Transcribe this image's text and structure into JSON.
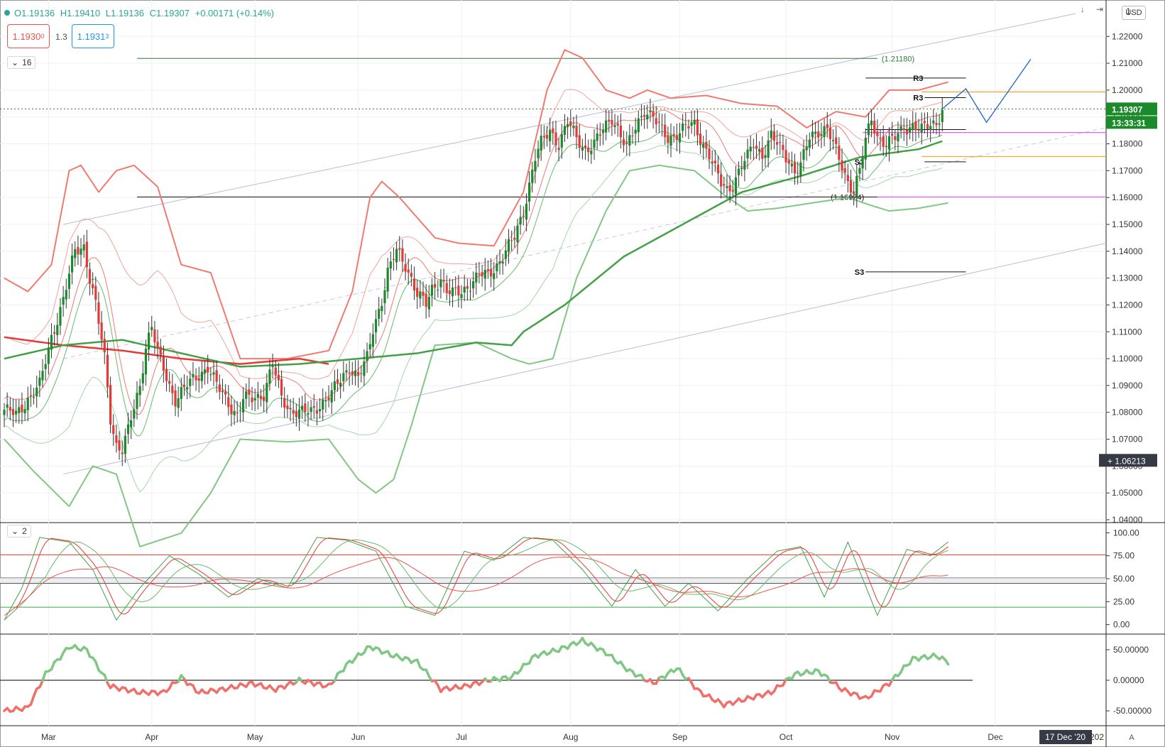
{
  "header": {
    "open": "O1.19136",
    "high": "H1.19410",
    "low": "L1.19136",
    "close": "C1.19307",
    "change": "+0.00171 (+0.14%)",
    "sell_price": "1.1930",
    "sell_sup": "0",
    "spread": "1.3",
    "buy_price": "1.1931",
    "buy_sup": "3",
    "main_indicators_count": "16",
    "osc_indicators_count": "2",
    "currency": "USD"
  },
  "chart_data": [
    {
      "type": "candlestick",
      "symbol": "EURUSD daily",
      "yticks": [
        "1.04000",
        "1.05000",
        "1.06000",
        "1.07000",
        "1.08000",
        "1.09000",
        "1.10000",
        "1.11000",
        "1.12000",
        "1.13000",
        "1.14000",
        "1.15000",
        "1.16000",
        "1.17000",
        "1.18000",
        "1.19000",
        "1.20000",
        "1.21000",
        "1.22000"
      ],
      "ylim": [
        1.0392,
        1.2288
      ],
      "xticks": [
        "Mar",
        "Apr",
        "May",
        "Jun",
        "Jul",
        "Aug",
        "Sep",
        "Oct",
        "Nov",
        "Dec"
      ],
      "last_price_label": "1.19307",
      "countdown_label": "13:33:31",
      "crosshair_price_label": "1.06213",
      "crosshair_date_label": "17 Dec '20",
      "axis_end_label": "202",
      "top_axis_label": "1.",
      "annotations": [
        {
          "text": "(1.21180)",
          "price": 1.2118
        },
        {
          "text": "(1.16024)",
          "price": 1.1602
        },
        {
          "text": "R3",
          "price": 1.2045
        },
        {
          "text": "R3",
          "price": 1.1972
        },
        {
          "text": "S3",
          "price": 1.1733
        },
        {
          "text": "S3",
          "price": 1.1323
        }
      ],
      "closes_anchor": [
        [
          0,
          1.081
        ],
        [
          4,
          1.079
        ],
        [
          8,
          1.085
        ],
        [
          12,
          1.09
        ],
        [
          16,
          1.108
        ],
        [
          20,
          1.122
        ],
        [
          24,
          1.14
        ],
        [
          27,
          1.142
        ],
        [
          29,
          1.13
        ],
        [
          31,
          1.12
        ],
        [
          34,
          1.1
        ],
        [
          36,
          1.078
        ],
        [
          38,
          1.068
        ],
        [
          40,
          1.066
        ],
        [
          42,
          1.073
        ],
        [
          46,
          1.09
        ],
        [
          48,
          1.105
        ],
        [
          50,
          1.112
        ],
        [
          52,
          1.102
        ],
        [
          56,
          1.09
        ],
        [
          58,
          1.085
        ],
        [
          62,
          1.09
        ],
        [
          66,
          1.094
        ],
        [
          69,
          1.097
        ],
        [
          72,
          1.09
        ],
        [
          75,
          1.085
        ],
        [
          79,
          1.079
        ],
        [
          81,
          1.085
        ],
        [
          84,
          1.085
        ],
        [
          88,
          1.087
        ],
        [
          91,
          1.098
        ],
        [
          94,
          1.085
        ],
        [
          97,
          1.081
        ],
        [
          101,
          1.08
        ],
        [
          104,
          1.08
        ],
        [
          108,
          1.084
        ],
        [
          111,
          1.087
        ],
        [
          114,
          1.092
        ],
        [
          117,
          1.097
        ],
        [
          120,
          1.093
        ],
        [
          123,
          1.1
        ],
        [
          125,
          1.111
        ],
        [
          128,
          1.122
        ],
        [
          130,
          1.132
        ],
        [
          133,
          1.14
        ],
        [
          136,
          1.135
        ],
        [
          138,
          1.13
        ],
        [
          140,
          1.124
        ],
        [
          143,
          1.12
        ],
        [
          145,
          1.126
        ],
        [
          148,
          1.13
        ],
        [
          150,
          1.125
        ],
        [
          152,
          1.124
        ],
        [
          155,
          1.125
        ],
        [
          158,
          1.128
        ],
        [
          161,
          1.131
        ],
        [
          164,
          1.131
        ],
        [
          167,
          1.135
        ],
        [
          170,
          1.14
        ],
        [
          173,
          1.145
        ],
        [
          176,
          1.155
        ],
        [
          178,
          1.165
        ],
        [
          180,
          1.175
        ],
        [
          182,
          1.18
        ],
        [
          185,
          1.185
        ],
        [
          188,
          1.18
        ],
        [
          191,
          1.188
        ],
        [
          194,
          1.182
        ],
        [
          197,
          1.178
        ],
        [
          200,
          1.18
        ],
        [
          203,
          1.185
        ],
        [
          206,
          1.19
        ],
        [
          208,
          1.186
        ],
        [
          211,
          1.178
        ],
        [
          214,
          1.186
        ],
        [
          217,
          1.193
        ],
        [
          220,
          1.19
        ],
        [
          222,
          1.186
        ],
        [
          225,
          1.182
        ],
        [
          228,
          1.184
        ],
        [
          231,
          1.186
        ],
        [
          234,
          1.187
        ],
        [
          236,
          1.182
        ],
        [
          239,
          1.176
        ],
        [
          241,
          1.17
        ],
        [
          243,
          1.165
        ],
        [
          245,
          1.163
        ],
        [
          247,
          1.165
        ],
        [
          250,
          1.172
        ],
        [
          252,
          1.175
        ],
        [
          254,
          1.18
        ],
        [
          257,
          1.176
        ],
        [
          260,
          1.183
        ],
        [
          263,
          1.178
        ],
        [
          266,
          1.174
        ],
        [
          268,
          1.17
        ],
        [
          270,
          1.172
        ],
        [
          273,
          1.182
        ],
        [
          276,
          1.185
        ],
        [
          279,
          1.186
        ],
        [
          281,
          1.18
        ],
        [
          283,
          1.174
        ],
        [
          286,
          1.166
        ],
        [
          288,
          1.163
        ],
        [
          290,
          1.17
        ],
        [
          292,
          1.181
        ],
        [
          294,
          1.189
        ],
        [
          296,
          1.183
        ],
        [
          299,
          1.18
        ],
        [
          302,
          1.182
        ],
        [
          305,
          1.186
        ],
        [
          308,
          1.187
        ],
        [
          311,
          1.185
        ],
        [
          314,
          1.187
        ],
        [
          316,
          1.188
        ],
        [
          318,
          1.193
        ]
      ],
      "ma_red_anchor": [
        [
          0,
          1.108
        ],
        [
          20,
          1.105
        ],
        [
          40,
          1.103
        ],
        [
          60,
          1.1
        ],
        [
          80,
          1.098
        ],
        [
          100,
          1.1
        ],
        [
          110,
          1.098
        ]
      ],
      "ma_green_anchor": [
        [
          0,
          1.1
        ],
        [
          20,
          1.105
        ],
        [
          40,
          1.107
        ],
        [
          60,
          1.102
        ],
        [
          80,
          1.097
        ],
        [
          100,
          1.098
        ],
        [
          120,
          1.1
        ],
        [
          140,
          1.102
        ],
        [
          160,
          1.106
        ],
        [
          172,
          1.105
        ],
        [
          176,
          1.11
        ],
        [
          190,
          1.12
        ],
        [
          210,
          1.138
        ],
        [
          230,
          1.15
        ],
        [
          250,
          1.162
        ],
        [
          270,
          1.168
        ],
        [
          290,
          1.175
        ],
        [
          310,
          1.178
        ],
        [
          318,
          1.181
        ]
      ],
      "bb_red_outer_anchor": [
        [
          0,
          1.13
        ],
        [
          8,
          1.125
        ],
        [
          16,
          1.135
        ],
        [
          22,
          1.17
        ],
        [
          26,
          1.172
        ],
        [
          32,
          1.162
        ],
        [
          38,
          1.17
        ],
        [
          44,
          1.172
        ],
        [
          52,
          1.164
        ],
        [
          60,
          1.135
        ],
        [
          70,
          1.132
        ],
        [
          80,
          1.1
        ],
        [
          96,
          1.1
        ],
        [
          110,
          1.103
        ],
        [
          118,
          1.125
        ],
        [
          124,
          1.16
        ],
        [
          128,
          1.166
        ],
        [
          134,
          1.16
        ],
        [
          146,
          1.145
        ],
        [
          154,
          1.143
        ],
        [
          166,
          1.142
        ],
        [
          176,
          1.162
        ],
        [
          184,
          1.2
        ],
        [
          190,
          1.215
        ],
        [
          196,
          1.212
        ],
        [
          204,
          1.2
        ],
        [
          212,
          1.197
        ],
        [
          218,
          1.2
        ],
        [
          226,
          1.197
        ],
        [
          238,
          1.198
        ],
        [
          250,
          1.195
        ],
        [
          262,
          1.194
        ],
        [
          272,
          1.186
        ],
        [
          282,
          1.192
        ],
        [
          292,
          1.19
        ],
        [
          300,
          1.2
        ],
        [
          310,
          1.2
        ],
        [
          320,
          1.203
        ]
      ],
      "bb_green_outer_anchor": [
        [
          0,
          1.07
        ],
        [
          10,
          1.058
        ],
        [
          22,
          1.045
        ],
        [
          30,
          1.06
        ],
        [
          38,
          1.057
        ],
        [
          46,
          1.03
        ],
        [
          60,
          1.035
        ],
        [
          70,
          1.05
        ],
        [
          80,
          1.07
        ],
        [
          96,
          1.069
        ],
        [
          110,
          1.07
        ],
        [
          120,
          1.055
        ],
        [
          126,
          1.05
        ],
        [
          132,
          1.055
        ],
        [
          138,
          1.075
        ],
        [
          146,
          1.105
        ],
        [
          160,
          1.106
        ],
        [
          172,
          1.1
        ],
        [
          178,
          1.098
        ],
        [
          186,
          1.1
        ],
        [
          194,
          1.13
        ],
        [
          204,
          1.155
        ],
        [
          212,
          1.17
        ],
        [
          222,
          1.172
        ],
        [
          234,
          1.17
        ],
        [
          244,
          1.161
        ],
        [
          252,
          1.155
        ],
        [
          262,
          1.156
        ],
        [
          274,
          1.158
        ],
        [
          286,
          1.16
        ],
        [
          294,
          1.157
        ],
        [
          300,
          1.155
        ],
        [
          310,
          1.156
        ],
        [
          320,
          1.158
        ]
      ],
      "osc_anchor": [
        [
          0,
          5
        ],
        [
          6,
          40
        ],
        [
          12,
          95
        ],
        [
          22,
          90
        ],
        [
          30,
          60
        ],
        [
          38,
          5
        ],
        [
          46,
          40
        ],
        [
          56,
          75
        ],
        [
          66,
          55
        ],
        [
          76,
          30
        ],
        [
          86,
          50
        ],
        [
          96,
          40
        ],
        [
          106,
          95
        ],
        [
          116,
          92
        ],
        [
          126,
          80
        ],
        [
          136,
          20
        ],
        [
          146,
          10
        ],
        [
          156,
          80
        ],
        [
          166,
          70
        ],
        [
          176,
          95
        ],
        [
          186,
          92
        ],
        [
          196,
          60
        ],
        [
          206,
          20
        ],
        [
          214,
          60
        ],
        [
          224,
          20
        ],
        [
          232,
          45
        ],
        [
          242,
          15
        ],
        [
          252,
          50
        ],
        [
          262,
          80
        ],
        [
          270,
          85
        ],
        [
          278,
          30
        ],
        [
          286,
          90
        ],
        [
          296,
          10
        ],
        [
          306,
          82
        ],
        [
          314,
          75
        ],
        [
          320,
          90
        ]
      ],
      "osc_yticks": [
        "100.00",
        "75.00",
        "50.00",
        "25.00",
        "0.00"
      ],
      "osc_ylim": [
        -8,
        108
      ],
      "osc_levels": [
        76,
        51,
        45,
        19
      ],
      "macd_anchor": [
        [
          0,
          -50
        ],
        [
          8,
          -45
        ],
        [
          14,
          10
        ],
        [
          22,
          55
        ],
        [
          28,
          50
        ],
        [
          36,
          -10
        ],
        [
          46,
          -20
        ],
        [
          54,
          -20
        ],
        [
          60,
          5
        ],
        [
          66,
          -20
        ],
        [
          74,
          -15
        ],
        [
          84,
          -5
        ],
        [
          92,
          -15
        ],
        [
          100,
          0
        ],
        [
          110,
          -10
        ],
        [
          116,
          25
        ],
        [
          124,
          55
        ],
        [
          132,
          40
        ],
        [
          140,
          30
        ],
        [
          148,
          -15
        ],
        [
          156,
          -10
        ],
        [
          164,
          0
        ],
        [
          172,
          5
        ],
        [
          180,
          40
        ],
        [
          188,
          50
        ],
        [
          196,
          65
        ],
        [
          204,
          45
        ],
        [
          212,
          15
        ],
        [
          220,
          -5
        ],
        [
          228,
          20
        ],
        [
          236,
          -20
        ],
        [
          244,
          -40
        ],
        [
          252,
          -30
        ],
        [
          260,
          -20
        ],
        [
          268,
          10
        ],
        [
          276,
          15
        ],
        [
          284,
          -15
        ],
        [
          292,
          -30
        ],
        [
          300,
          -5
        ],
        [
          308,
          35
        ],
        [
          316,
          40
        ],
        [
          320,
          30
        ]
      ],
      "macd_yticks": [
        "50.00000",
        "0.00000",
        "-50.00000"
      ],
      "macd_ylim": [
        -72,
        72
      ]
    }
  ]
}
